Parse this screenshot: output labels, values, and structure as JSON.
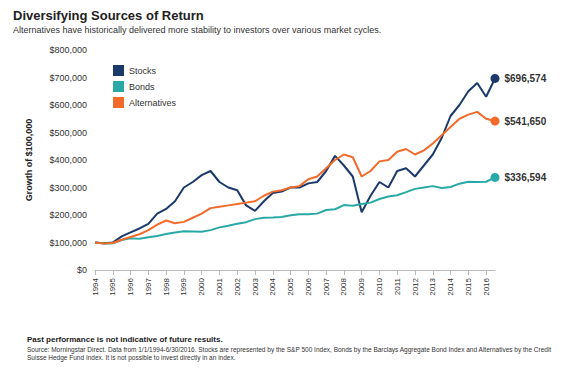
{
  "chart_data": {
    "type": "line",
    "title": "Diversifying Sources of Return",
    "subtitle": "Alternatives have historically delivered more stability to investors over various market cycles.",
    "y_label": "Growth of $100,000",
    "notes": [
      "Past performance is not indicative of future results.",
      "Source: Morningstar Direct. Data from 1/1/1994-6/30/2016. Stocks are represented by the S&P 500 Index, Bonds by the Barclays Aggregate Bond Index and Alternatives by the Credit Suisse Hedge Fund Index. It is not possible to invest directly in an index."
    ],
    "x": [
      1994,
      1994.5,
      1995,
      1995.5,
      1996,
      1996.5,
      1997,
      1997.5,
      1998,
      1998.5,
      1999,
      1999.5,
      2000,
      2000.5,
      2001,
      2001.5,
      2002,
      2002.5,
      2003,
      2003.5,
      2004,
      2004.5,
      2005,
      2005.5,
      2006,
      2006.5,
      2007,
      2007.5,
      2008,
      2008.5,
      2009,
      2009.5,
      2010,
      2010.5,
      2011,
      2011.5,
      2012,
      2012.5,
      2013,
      2013.5,
      2014,
      2014.5,
      2015,
      2015.5,
      2016,
      2016.5
    ],
    "series": [
      {
        "name": "Stocks",
        "color": "#1b3a6b",
        "values": [
          100000,
          97000,
          100000,
          122000,
          137000,
          151000,
          168000,
          205000,
          222000,
          250000,
          300000,
          320000,
          345000,
          360000,
          320000,
          300000,
          290000,
          235000,
          215000,
          250000,
          280000,
          285000,
          300000,
          300000,
          315000,
          320000,
          360000,
          415000,
          380000,
          340000,
          210000,
          270000,
          320000,
          300000,
          360000,
          370000,
          340000,
          380000,
          420000,
          480000,
          560000,
          600000,
          650000,
          680000,
          630000,
          696574
        ]
      },
      {
        "name": "Bonds",
        "color": "#29a9a6",
        "values": [
          100000,
          96000,
          97000,
          109000,
          115000,
          114000,
          119000,
          124000,
          131000,
          136000,
          141000,
          140000,
          139000,
          145000,
          155000,
          161000,
          168000,
          174000,
          185000,
          190000,
          191000,
          193000,
          199000,
          203000,
          203000,
          205000,
          218000,
          221000,
          236000,
          234000,
          240000,
          245000,
          258000,
          267000,
          272000,
          283000,
          295000,
          300000,
          305000,
          298000,
          302000,
          314000,
          321000,
          320000,
          321000,
          336594
        ]
      },
      {
        "name": "Alternatives",
        "color": "#f26b2b",
        "values": [
          100000,
          96000,
          98000,
          110000,
          120000,
          130000,
          145000,
          165000,
          180000,
          170000,
          175000,
          190000,
          205000,
          225000,
          230000,
          235000,
          240000,
          245000,
          250000,
          270000,
          285000,
          290000,
          300000,
          305000,
          330000,
          340000,
          370000,
          400000,
          420000,
          410000,
          340000,
          360000,
          395000,
          400000,
          430000,
          440000,
          420000,
          435000,
          460000,
          490000,
          520000,
          550000,
          565000,
          575000,
          550000,
          541650
        ]
      }
    ],
    "annotations": [
      {
        "text": "$696,574",
        "x": 2016.5,
        "y": 696574,
        "series": "Stocks"
      },
      {
        "text": "$541,650",
        "x": 2016.5,
        "y": 541650,
        "series": "Alternatives"
      },
      {
        "text": "$336,594",
        "x": 2016.5,
        "y": 336594,
        "series": "Bonds"
      }
    ],
    "xlim": [
      1994,
      2016.5
    ],
    "xticks": [
      1994,
      1995,
      1996,
      1997,
      1998,
      1999,
      2000,
      2001,
      2002,
      2003,
      2004,
      2005,
      2006,
      2007,
      2008,
      2009,
      2010,
      2011,
      2012,
      2013,
      2014,
      2015,
      2016
    ],
    "ylim": [
      0,
      800000
    ],
    "yticks": [
      {
        "value": 0,
        "label": "$0"
      },
      {
        "value": 100000,
        "label": "$100,000"
      },
      {
        "value": 200000,
        "label": "$200,000"
      },
      {
        "value": 300000,
        "label": "$300,000"
      },
      {
        "value": 400000,
        "label": "$400,000"
      },
      {
        "value": 500000,
        "label": "$500,000"
      },
      {
        "value": 600000,
        "label": "$600,000"
      },
      {
        "value": 700000,
        "label": "$700,000"
      },
      {
        "value": 800000,
        "label": "$800,000"
      }
    ],
    "grid": false,
    "legend": "upper left"
  }
}
